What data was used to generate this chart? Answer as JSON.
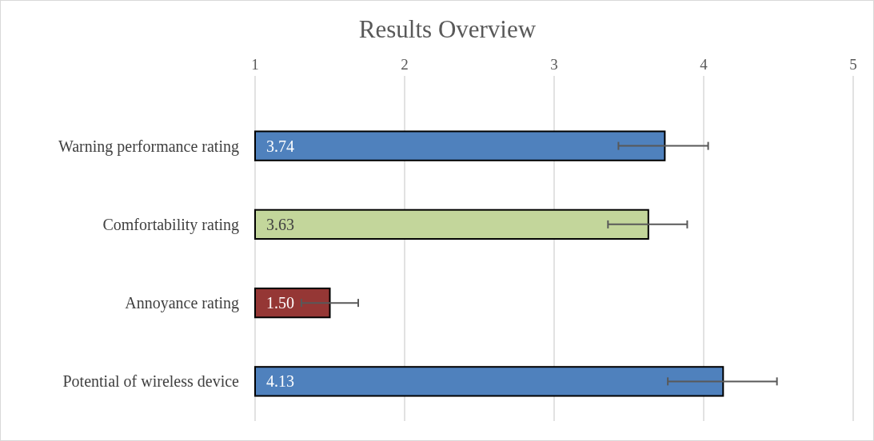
{
  "chart_data": {
    "type": "bar",
    "orientation": "horizontal",
    "title": "Results Overview",
    "categories": [
      "Warning performance rating",
      "Comfortability rating",
      "Annoyance rating",
      "Potential of wireless device"
    ],
    "values": [
      3.74,
      3.63,
      1.5,
      4.13
    ],
    "colors": [
      "#4f81bd",
      "#c3d69b",
      "#953735",
      "#4f81bd"
    ],
    "errors": [
      [
        3.43,
        4.03
      ],
      [
        3.36,
        3.89
      ],
      [
        1.31,
        1.69
      ],
      [
        3.76,
        4.49
      ]
    ],
    "value_labels": [
      "3.74",
      "3.63",
      "1.50",
      "4.13"
    ],
    "xlim": [
      1,
      5
    ],
    "xticks": [
      1,
      2,
      3,
      4,
      5
    ],
    "grid": "x"
  }
}
